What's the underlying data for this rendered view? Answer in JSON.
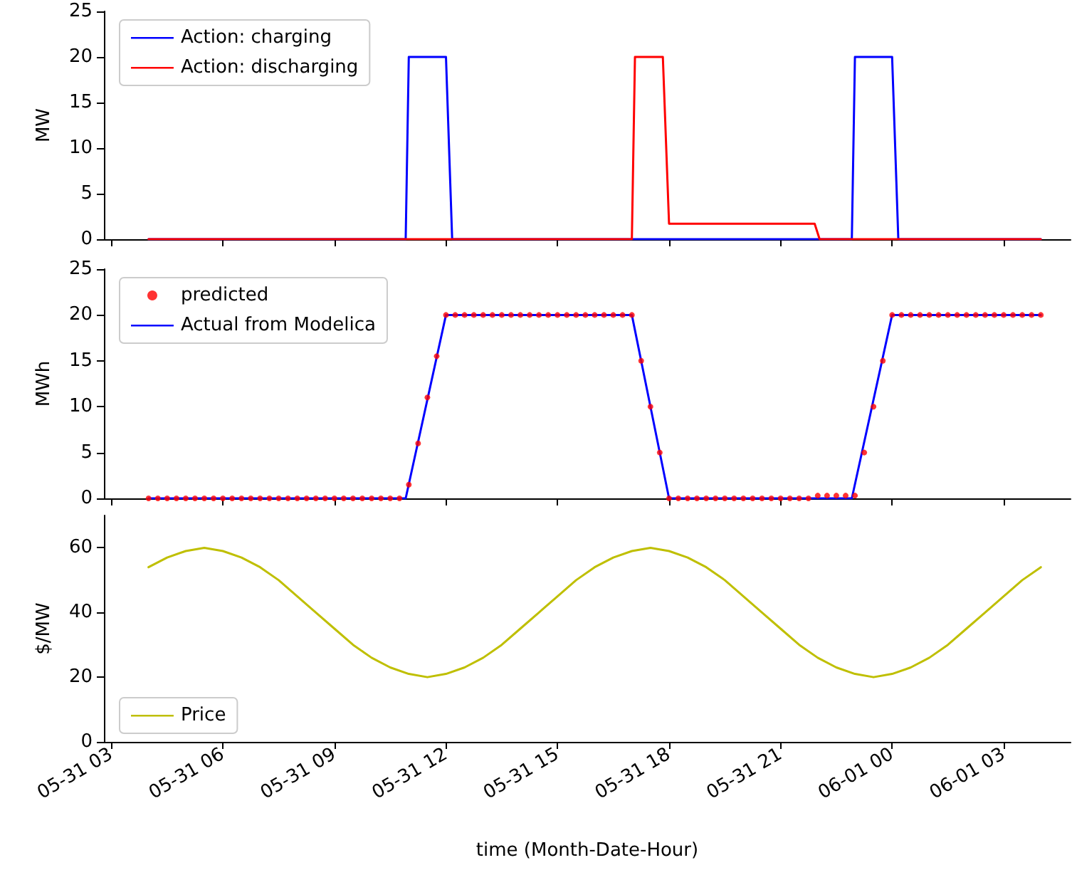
{
  "chart_data": [
    {
      "type": "line",
      "ylabel": "MW",
      "xlim": [
        "--05-31T02:48",
        "--06-01T04:48"
      ],
      "xticks": [
        "--05-31T03:00",
        "--05-31T06:00",
        "--05-31T09:00",
        "--05-31T12:00",
        "--05-31T15:00",
        "--05-31T18:00",
        "--05-31T21:00",
        "--06-01T00:00",
        "--06-01T03:00"
      ],
      "ylim": [
        0,
        25
      ],
      "yticks": [
        0,
        5,
        10,
        15,
        20,
        25
      ],
      "tick_labels": "y",
      "grid": false,
      "legend": "top left",
      "marker": "none",
      "line_style": "solid",
      "series": [
        {
          "name": "Action: charging",
          "color": "#0000ff",
          "x": [
            "--05-31T04:00",
            "--05-31T10:55",
            "--05-31T11:00",
            "--05-31T12:00",
            "--05-31T12:10",
            "--05-31T22:55",
            "--05-31T23:00",
            "--06-01T00:00",
            "--06-01T00:10",
            "--06-01T04:00"
          ],
          "values": [
            0,
            0,
            20,
            20,
            0,
            0,
            20,
            20,
            0,
            0
          ]
        },
        {
          "name": "Action: discharging",
          "color": "#ff0000",
          "x": [
            "--05-31T04:00",
            "--05-31T17:00",
            "--05-31T17:05",
            "--05-31T17:50",
            "--05-31T18:00",
            "--05-31T21:55",
            "--05-31T22:03",
            "--06-01T04:00"
          ],
          "values": [
            0,
            0,
            20,
            20,
            1.7,
            1.7,
            0,
            0
          ]
        }
      ]
    },
    {
      "type": "line",
      "ylabel": "MWh",
      "xlim": [
        "--05-31T02:48",
        "--06-01T04:48"
      ],
      "xticks": [
        "--05-31T03:00",
        "--05-31T06:00",
        "--05-31T09:00",
        "--05-31T12:00",
        "--05-31T15:00",
        "--05-31T18:00",
        "--05-31T21:00",
        "--06-01T00:00",
        "--06-01T03:00"
      ],
      "ylim": [
        0,
        25
      ],
      "yticks": [
        0,
        5,
        10,
        15,
        20,
        25
      ],
      "tick_labels": "y",
      "grid": false,
      "legend": "top left",
      "series": [
        {
          "name": "predicted",
          "type": "scatter",
          "marker": "circle",
          "color": "#ff0000",
          "x": [
            "--05-31T04:00",
            "--05-31T04:15",
            "--05-31T04:30",
            "--05-31T04:45",
            "--05-31T05:00",
            "--05-31T05:15",
            "--05-31T05:30",
            "--05-31T05:45",
            "--05-31T06:00",
            "--05-31T06:15",
            "--05-31T06:30",
            "--05-31T06:45",
            "--05-31T07:00",
            "--05-31T07:15",
            "--05-31T07:30",
            "--05-31T07:45",
            "--05-31T08:00",
            "--05-31T08:15",
            "--05-31T08:30",
            "--05-31T08:45",
            "--05-31T09:00",
            "--05-31T09:15",
            "--05-31T09:30",
            "--05-31T09:45",
            "--05-31T10:00",
            "--05-31T10:15",
            "--05-31T10:30",
            "--05-31T10:45",
            "--05-31T11:00",
            "--05-31T11:15",
            "--05-31T11:30",
            "--05-31T11:45",
            "--05-31T12:00",
            "--05-31T12:15",
            "--05-31T12:30",
            "--05-31T12:45",
            "--05-31T13:00",
            "--05-31T13:15",
            "--05-31T13:30",
            "--05-31T13:45",
            "--05-31T14:00",
            "--05-31T14:15",
            "--05-31T14:30",
            "--05-31T14:45",
            "--05-31T15:00",
            "--05-31T15:15",
            "--05-31T15:30",
            "--05-31T15:45",
            "--05-31T16:00",
            "--05-31T16:15",
            "--05-31T16:30",
            "--05-31T16:45",
            "--05-31T17:00",
            "--05-31T17:15",
            "--05-31T17:30",
            "--05-31T17:45",
            "--05-31T18:00",
            "--05-31T18:15",
            "--05-31T18:30",
            "--05-31T18:45",
            "--05-31T19:00",
            "--05-31T19:15",
            "--05-31T19:30",
            "--05-31T19:45",
            "--05-31T20:00",
            "--05-31T20:15",
            "--05-31T20:30",
            "--05-31T20:45",
            "--05-31T21:00",
            "--05-31T21:15",
            "--05-31T21:30",
            "--05-31T21:45",
            "--05-31T22:00",
            "--05-31T22:15",
            "--05-31T22:30",
            "--05-31T22:45",
            "--05-31T23:00",
            "--05-31T23:15",
            "--05-31T23:30",
            "--05-31T23:45",
            "--06-01T00:00",
            "--06-01T00:15",
            "--06-01T00:30",
            "--06-01T00:45",
            "--06-01T01:00",
            "--06-01T01:15",
            "--06-01T01:30",
            "--06-01T01:45",
            "--06-01T02:00",
            "--06-01T02:15",
            "--06-01T02:30",
            "--06-01T02:45",
            "--06-01T03:00",
            "--06-01T03:15",
            "--06-01T03:30",
            "--06-01T03:45",
            "--06-01T04:00"
          ],
          "values": [
            0,
            0,
            0,
            0,
            0,
            0,
            0,
            0,
            0,
            0,
            0,
            0,
            0,
            0,
            0,
            0,
            0,
            0,
            0,
            0,
            0,
            0,
            0,
            0,
            0,
            0,
            0,
            0,
            1.5,
            6,
            11,
            15.5,
            20,
            20,
            20,
            20,
            20,
            20,
            20,
            20,
            20,
            20,
            20,
            20,
            20,
            20,
            20,
            20,
            20,
            20,
            20,
            20,
            20,
            15,
            10,
            5,
            0,
            0,
            0,
            0,
            0,
            0,
            0,
            0,
            0,
            0,
            0,
            0,
            0,
            0,
            0,
            0,
            0.3,
            0.3,
            0.3,
            0.3,
            0.3,
            5,
            10,
            15,
            20,
            20,
            20,
            20,
            20,
            20,
            20,
            20,
            20,
            20,
            20,
            20,
            20,
            20,
            20,
            20,
            20
          ]
        },
        {
          "name": "Actual from Modelica",
          "type": "line",
          "marker": "none",
          "line_style": "solid",
          "color": "#0000ff",
          "x": [
            "--05-31T04:00",
            "--05-31T10:55",
            "--05-31T12:00",
            "--05-31T17:00",
            "--05-31T18:00",
            "--05-31T22:55",
            "--06-01T00:00",
            "--06-01T04:00"
          ],
          "values": [
            0,
            0,
            20,
            20,
            0,
            0,
            20,
            20
          ]
        }
      ]
    },
    {
      "type": "line",
      "ylabel": "$/MW",
      "xlabel": "time (Month-Date-Hour)",
      "xlim": [
        "--05-31T02:48",
        "--06-01T04:48"
      ],
      "xticks": [
        {
          "value": "--05-31T03:00",
          "label": "05-31 03"
        },
        {
          "value": "--05-31T06:00",
          "label": "05-31 06"
        },
        {
          "value": "--05-31T09:00",
          "label": "05-31 09"
        },
        {
          "value": "--05-31T12:00",
          "label": "05-31 12"
        },
        {
          "value": "--05-31T15:00",
          "label": "05-31 15"
        },
        {
          "value": "--05-31T18:00",
          "label": "05-31 18"
        },
        {
          "value": "--05-31T21:00",
          "label": "05-31 21"
        },
        {
          "value": "--06-01T00:00",
          "label": "06-01 00"
        },
        {
          "value": "--06-01T03:00",
          "label": "06-01 03"
        }
      ],
      "ylim": [
        0,
        70
      ],
      "yticks": [
        0,
        20,
        40,
        60
      ],
      "grid": false,
      "legend": "bottom left",
      "marker": "none",
      "line_style": "solid",
      "series": [
        {
          "name": "Price",
          "color": "#bfbf00",
          "x": [
            "--05-31T04:00",
            "--05-31T04:30",
            "--05-31T05:00",
            "--05-31T05:30",
            "--05-31T06:00",
            "--05-31T06:30",
            "--05-31T07:00",
            "--05-31T07:30",
            "--05-31T08:00",
            "--05-31T08:30",
            "--05-31T09:00",
            "--05-31T09:30",
            "--05-31T10:00",
            "--05-31T10:30",
            "--05-31T11:00",
            "--05-31T11:30",
            "--05-31T12:00",
            "--05-31T12:30",
            "--05-31T13:00",
            "--05-31T13:30",
            "--05-31T14:00",
            "--05-31T14:30",
            "--05-31T15:00",
            "--05-31T15:30",
            "--05-31T16:00",
            "--05-31T16:30",
            "--05-31T17:00",
            "--05-31T17:30",
            "--05-31T18:00",
            "--05-31T18:30",
            "--05-31T19:00",
            "--05-31T19:30",
            "--05-31T20:00",
            "--05-31T20:30",
            "--05-31T21:00",
            "--05-31T21:30",
            "--05-31T22:00",
            "--05-31T22:30",
            "--05-31T23:00",
            "--05-31T23:30",
            "--06-01T00:00",
            "--06-01T00:30",
            "--06-01T01:00",
            "--06-01T01:30",
            "--06-01T02:00",
            "--06-01T02:30",
            "--06-01T03:00",
            "--06-01T03:30",
            "--06-01T04:00"
          ],
          "values": [
            54,
            57,
            59,
            60,
            59,
            57,
            54,
            50,
            45,
            40,
            35,
            30,
            26,
            23,
            21,
            20,
            21,
            23,
            26,
            30,
            35,
            40,
            45,
            50,
            54,
            57,
            59,
            60,
            59,
            57,
            54,
            50,
            45,
            40,
            35,
            30,
            26,
            23,
            21,
            20,
            21,
            23,
            26,
            30,
            35,
            40,
            45,
            50,
            54
          ]
        }
      ]
    }
  ]
}
